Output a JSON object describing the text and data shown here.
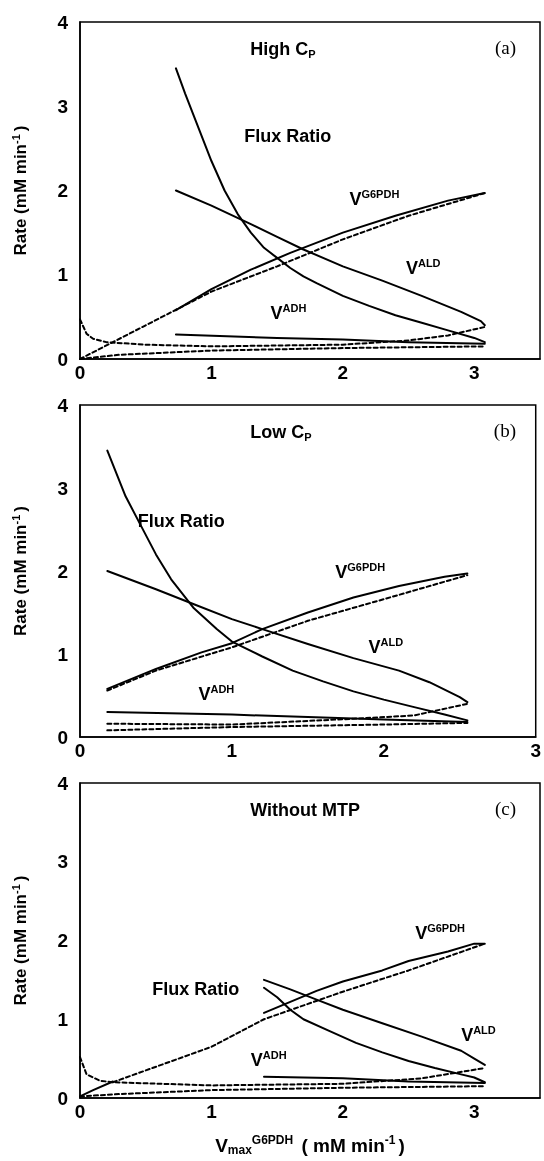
{
  "chart_data": [
    {
      "type": "line",
      "title": "High C$_{P}$",
      "ylabel": "Rate (mM min$^{-1}$)",
      "xlim": [
        0,
        3.5
      ],
      "xticks": [
        0,
        1,
        2,
        3
      ],
      "ylim": [
        0,
        4
      ],
      "yticks": [
        0,
        1,
        2,
        3,
        4
      ],
      "grid": false,
      "marker": "none",
      "line_style": "solid",
      "annotations": [
        "(a)",
        "Flux Ratio",
        "V$^{G6PDH}$",
        "V$^{ALD}$",
        "V$^{ADH}$"
      ],
      "series": [
        {
          "color": "#000000",
          "x": [
            0.73,
            0.8,
            0.9,
            1.0,
            1.1,
            1.2,
            1.3,
            1.4,
            1.5,
            1.6,
            1.7,
            1.8,
            2.0,
            2.2,
            2.4,
            2.6,
            2.8,
            3.0,
            3.08
          ],
          "values": [
            3.45,
            3.15,
            2.75,
            2.35,
            2.0,
            1.72,
            1.5,
            1.32,
            1.2,
            1.08,
            0.98,
            0.9,
            0.75,
            0.63,
            0.52,
            0.43,
            0.34,
            0.25,
            0.2
          ]
        },
        {
          "color": "#000000",
          "x": [
            0.73,
            1.0,
            1.3,
            1.5,
            1.7,
            2.0,
            2.3,
            2.6,
            2.9,
            3.05,
            3.08
          ],
          "values": [
            2.0,
            1.82,
            1.6,
            1.45,
            1.3,
            1.1,
            0.93,
            0.75,
            0.56,
            0.45,
            0.4
          ]
        },
        {
          "color": "#000000",
          "x": [
            0.73,
            1.0,
            1.3,
            1.6,
            2.0,
            2.4,
            2.8,
            3.08
          ],
          "values": [
            0.58,
            0.83,
            1.06,
            1.26,
            1.5,
            1.7,
            1.88,
            1.97
          ]
        },
        {
          "color": "#000000",
          "line_style": "dashed",
          "x": [
            0,
            0.5,
            1.0,
            1.5,
            2.0,
            2.5,
            3.08
          ],
          "values": [
            0,
            0.4,
            0.8,
            1.1,
            1.42,
            1.7,
            1.97
          ]
        },
        {
          "color": "#000000",
          "x": [
            0.73,
            1.5,
            2.0,
            2.5,
            3.08
          ],
          "values": [
            0.29,
            0.25,
            0.23,
            0.2,
            0.18
          ]
        },
        {
          "color": "#000000",
          "line_style": "dashed",
          "x": [
            0,
            0.05,
            0.1,
            0.2,
            0.5,
            1.0,
            2.0,
            2.5,
            2.8,
            3.08
          ],
          "values": [
            0.47,
            0.3,
            0.24,
            0.2,
            0.17,
            0.15,
            0.17,
            0.22,
            0.28,
            0.38
          ]
        },
        {
          "color": "#000000",
          "line_style": "dashed",
          "x": [
            0,
            0.3,
            1.0,
            2.0,
            3.08
          ],
          "values": [
            0,
            0.05,
            0.1,
            0.13,
            0.15
          ]
        }
      ]
    },
    {
      "type": "line",
      "title": "Low C$_{P}$",
      "ylabel": "Rate (mM min$^{-1}$)",
      "xlim": [
        0,
        3
      ],
      "xticks": [
        0,
        1,
        2,
        3
      ],
      "ylim": [
        0,
        4
      ],
      "yticks": [
        0,
        1,
        2,
        3,
        4
      ],
      "grid": false,
      "marker": "none",
      "line_style": "solid",
      "annotations": [
        "(b)",
        "Flux Ratio",
        "V$^{G6PDH}$",
        "V$^{ALD}$",
        "V$^{ADH}$"
      ],
      "series": [
        {
          "color": "#000000",
          "x": [
            0.18,
            0.3,
            0.4,
            0.5,
            0.6,
            0.75,
            0.9,
            1.0,
            1.2,
            1.4,
            1.6,
            1.8,
            2.0,
            2.2,
            2.4,
            2.55
          ],
          "values": [
            3.45,
            2.9,
            2.55,
            2.2,
            1.9,
            1.55,
            1.3,
            1.15,
            0.97,
            0.8,
            0.67,
            0.55,
            0.45,
            0.36,
            0.27,
            0.2
          ]
        },
        {
          "color": "#000000",
          "x": [
            0.18,
            0.5,
            0.75,
            1.0,
            1.2,
            1.5,
            1.8,
            2.1,
            2.3,
            2.5,
            2.55
          ],
          "values": [
            2.0,
            1.78,
            1.6,
            1.42,
            1.3,
            1.12,
            0.95,
            0.8,
            0.66,
            0.48,
            0.42
          ]
        },
        {
          "color": "#000000",
          "x": [
            0.18,
            0.5,
            0.8,
            1.0,
            1.2,
            1.5,
            1.8,
            2.1,
            2.4,
            2.55
          ],
          "values": [
            0.58,
            0.82,
            1.02,
            1.13,
            1.3,
            1.5,
            1.68,
            1.82,
            1.93,
            1.97
          ]
        },
        {
          "color": "#000000",
          "line_style": "dashed",
          "x": [
            0.18,
            0.5,
            1.0,
            1.5,
            2.0,
            2.55
          ],
          "values": [
            0.56,
            0.8,
            1.08,
            1.4,
            1.66,
            1.95
          ]
        },
        {
          "color": "#000000",
          "x": [
            0.18,
            1.0,
            1.5,
            2.0,
            2.55
          ],
          "values": [
            0.3,
            0.27,
            0.24,
            0.21,
            0.18
          ]
        },
        {
          "color": "#000000",
          "line_style": "dashed",
          "x": [
            0.18,
            1.0,
            1.8,
            2.2,
            2.55
          ],
          "values": [
            0.16,
            0.15,
            0.22,
            0.26,
            0.4
          ]
        },
        {
          "color": "#000000",
          "line_style": "dashed",
          "x": [
            0.18,
            1.0,
            2.0,
            2.55
          ],
          "values": [
            0.08,
            0.12,
            0.15,
            0.17
          ]
        }
      ]
    },
    {
      "type": "line",
      "title": "Without MTP",
      "xlabel": "V$_{max}$$^{G6PDH}$ ( mM min$^{-1}$)",
      "ylabel": "Rate (mM min$^{-1}$)",
      "xlim": [
        0,
        3.5
      ],
      "xticks": [
        0,
        1,
        2,
        3
      ],
      "ylim": [
        0,
        4
      ],
      "yticks": [
        0,
        1,
        2,
        3,
        4
      ],
      "grid": false,
      "marker": "none",
      "line_style": "solid",
      "annotations": [
        "(c)",
        "Flux Ratio",
        "V$^{G6PDH}$",
        "V$^{ALD}$",
        "V$^{ADH}$"
      ],
      "series": [
        {
          "color": "#000000",
          "x": [
            1.4,
            1.5,
            1.6,
            1.7,
            1.9,
            2.1,
            2.3,
            2.5,
            2.7,
            2.9,
            3.0,
            3.08
          ],
          "values": [
            1.4,
            1.28,
            1.12,
            1.0,
            0.85,
            0.7,
            0.58,
            0.47,
            0.38,
            0.3,
            0.26,
            0.2
          ]
        },
        {
          "color": "#000000",
          "x": [
            1.4,
            1.6,
            1.8,
            2.0,
            2.3,
            2.6,
            2.9,
            3.0,
            3.08
          ],
          "values": [
            1.5,
            1.38,
            1.25,
            1.12,
            0.95,
            0.78,
            0.6,
            0.5,
            0.42
          ]
        },
        {
          "color": "#000000",
          "x": [
            1.4,
            1.6,
            1.8,
            2.0,
            2.3,
            2.5,
            2.8,
            3.0,
            3.08
          ],
          "values": [
            1.08,
            1.22,
            1.36,
            1.48,
            1.62,
            1.74,
            1.86,
            1.96,
            1.96
          ]
        },
        {
          "color": "#000000",
          "line_style": "dashed",
          "x": [
            0.25,
            1.0,
            1.4,
            2.0,
            2.5,
            3.08
          ],
          "values": [
            0.2,
            0.65,
            1.0,
            1.35,
            1.62,
            1.96
          ]
        },
        {
          "color": "#000000",
          "x": [
            1.4,
            2.0,
            2.5,
            3.08
          ],
          "values": [
            0.27,
            0.25,
            0.21,
            0.19
          ]
        },
        {
          "color": "#000000",
          "x": [
            0,
            0.1,
            0.25
          ],
          "values": [
            0.02,
            0.1,
            0.21
          ]
        },
        {
          "color": "#000000",
          "line_style": "dashed",
          "x": [
            0,
            0.05,
            0.15,
            0.25,
            1.0,
            2.0,
            2.6,
            3.08
          ],
          "values": [
            0.52,
            0.3,
            0.22,
            0.2,
            0.16,
            0.18,
            0.25,
            0.38
          ]
        },
        {
          "color": "#000000",
          "line_style": "dashed",
          "x": [
            0,
            0.3,
            1.0,
            2.0,
            3.08
          ],
          "values": [
            0.02,
            0.05,
            0.1,
            0.13,
            0.15
          ]
        }
      ]
    }
  ]
}
